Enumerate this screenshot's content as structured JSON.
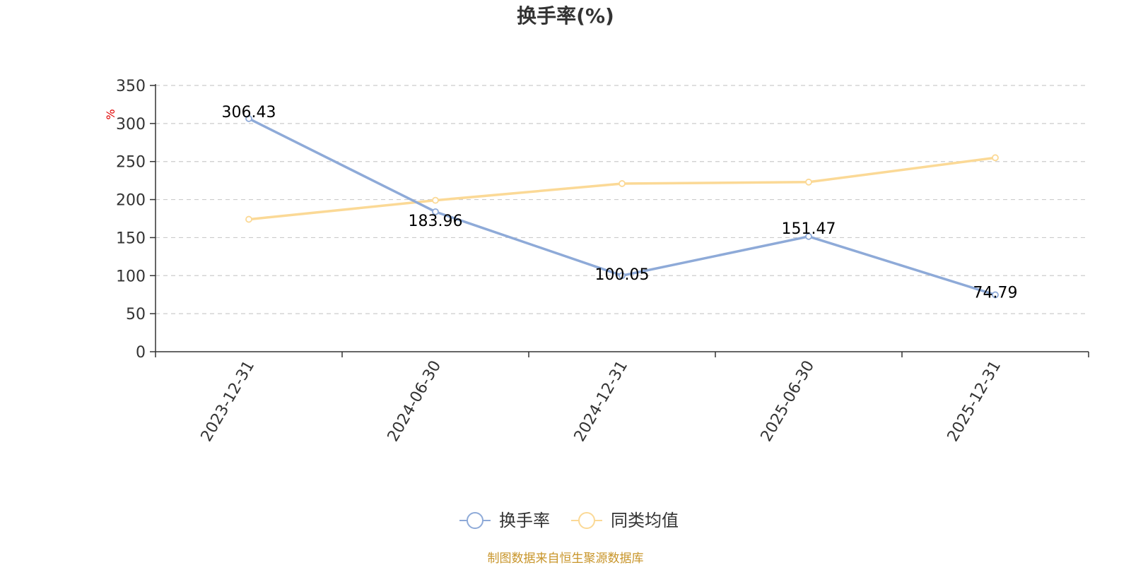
{
  "chart_data": {
    "type": "line",
    "title": "换手率(%)",
    "ylabel": "%",
    "categories": [
      "2023-12-31",
      "2024-06-30",
      "2024-12-31",
      "2025-06-30",
      "2025-12-31"
    ],
    "ylim": [
      0,
      350
    ],
    "yticks": [
      0,
      50,
      100,
      150,
      200,
      250,
      300,
      350
    ],
    "grid": true,
    "legend_position": "bottom",
    "series": [
      {
        "name": "换手率",
        "color": "#8eaad8",
        "values": [
          306.43,
          183.96,
          100.05,
          151.47,
          74.79
        ],
        "labels": [
          "306.43",
          "183.96",
          "100.05",
          "151.47",
          "74.79"
        ]
      },
      {
        "name": "同类均值",
        "color": "#fbd996",
        "values": [
          174,
          199,
          221,
          223,
          255
        ]
      }
    ]
  },
  "footer": {
    "source": "制图数据来自恒生聚源数据库",
    "source_color": "#c8952a"
  }
}
